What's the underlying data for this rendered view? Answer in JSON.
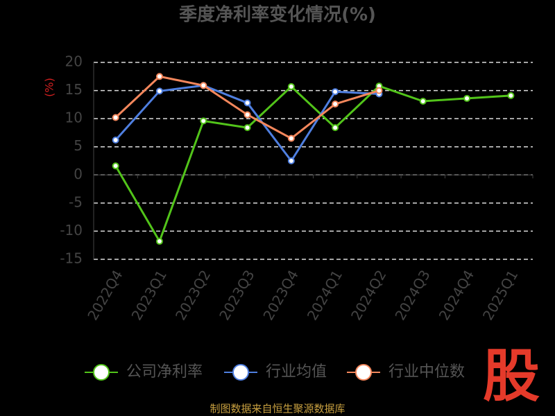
{
  "chart_data": {
    "type": "line",
    "title": "季度净利率变化情况(%)",
    "y_label": "(%)",
    "categories": [
      "2022Q4",
      "2023Q1",
      "2023Q2",
      "2023Q3",
      "2023Q4",
      "2024Q1",
      "2024Q2",
      "2024Q3",
      "2024Q4",
      "2025Q1"
    ],
    "series": [
      {
        "name": "公司净利率",
        "color": "#52c41a",
        "values": [
          1.6,
          -11.8,
          9.6,
          8.4,
          15.7,
          8.4,
          15.8,
          13.1,
          13.6,
          14.1
        ]
      },
      {
        "name": "行业均值",
        "color": "#4f7fe0",
        "values": [
          6.2,
          14.9,
          15.9,
          12.8,
          2.5,
          14.8,
          14.4,
          null,
          null,
          null
        ]
      },
      {
        "name": "行业中位数",
        "color": "#f4875c",
        "values": [
          10.2,
          17.5,
          15.9,
          10.7,
          6.5,
          12.6,
          15.0,
          null,
          null,
          null
        ]
      }
    ],
    "ylim": [
      -15,
      20
    ],
    "yticks": [
      -15,
      -10,
      -5,
      0,
      5,
      10,
      15,
      20
    ],
    "grid": true,
    "source": "制图数据来自恒生聚源数据库",
    "logo": "股"
  }
}
